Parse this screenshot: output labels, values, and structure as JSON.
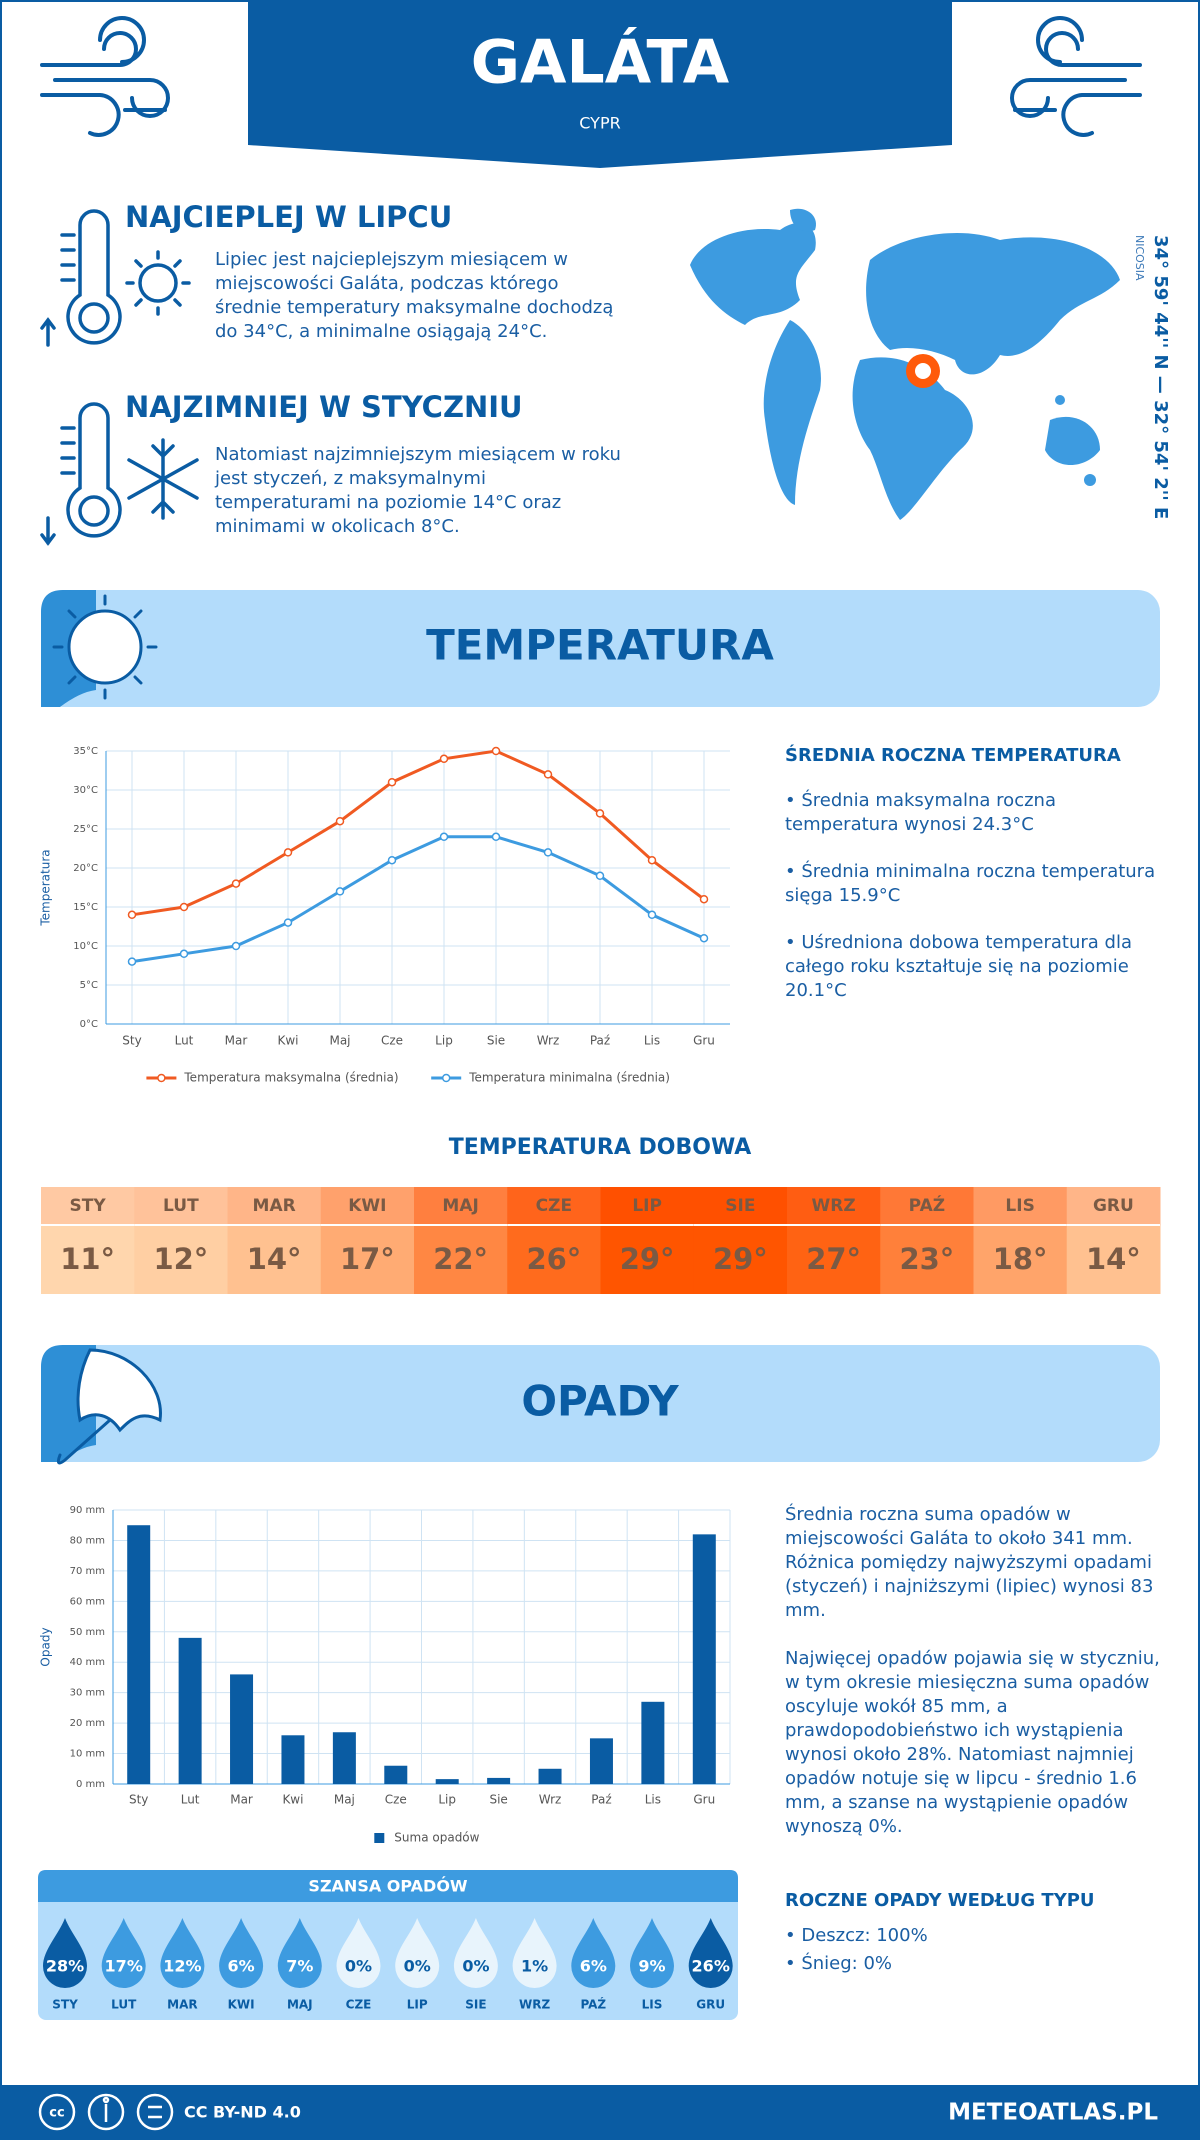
{
  "header": {
    "title": "GALÁTA",
    "subtitle": "CYPR"
  },
  "hottest": {
    "title": "NAJCIEPLEJ W LIPCU",
    "text": "Lipiec jest najcieplejszym miesiącem w miejscowości Galáta, podczas którego średnie temperatury maksymalne dochodzą do 34°C, a minimalne osiągają 24°C."
  },
  "coldest": {
    "title": "NAJZIMNIEJ W STYCZNIU",
    "text": "Natomiast najzimniejszym miesiącem w roku jest styczeń, z maksymalnymi temperaturami na poziomie 14°C oraz minimami w okolicach 8°C."
  },
  "location": {
    "coordinates": "34° 59' 44'' N — 32° 54' 2'' E",
    "capital": "NICOSIA"
  },
  "temperature_section": {
    "title": "TEMPERATURA",
    "summary_title": "ŚREDNIA ROCZNA TEMPERATURA",
    "bullets": [
      "• Średnia maksymalna roczna temperatura wynosi 24.3°C",
      "• Średnia minimalna roczna temperatura sięga 15.9°C",
      "• Uśredniona dobowa temperatura dla całego roku kształtuje się na poziomie 20.1°C"
    ]
  },
  "chart_data": [
    {
      "type": "line",
      "y_label": "Temperatura",
      "categories": [
        "Sty",
        "Lut",
        "Mar",
        "Kwi",
        "Maj",
        "Cze",
        "Lip",
        "Sie",
        "Wrz",
        "Paź",
        "Lis",
        "Gru"
      ],
      "series": [
        {
          "name": "Temperatura maksymalna (średnia)",
          "color": "#f05a22",
          "values": [
            14,
            15,
            18,
            22,
            26,
            31,
            34,
            35,
            32,
            27,
            21,
            16
          ]
        },
        {
          "name": "Temperatura minimalna (średnia)",
          "color": "#3d9be0",
          "values": [
            8,
            9,
            10,
            13,
            17,
            21,
            24,
            24,
            22,
            19,
            14,
            11
          ]
        }
      ],
      "ylim": [
        0,
        35
      ],
      "yticks": [
        {
          "value": 0,
          "label": "0°C"
        },
        {
          "value": 5,
          "label": "5°C"
        },
        {
          "value": 10,
          "label": "10°C"
        },
        {
          "value": 15,
          "label": "15°C"
        },
        {
          "value": 20,
          "label": "20°C"
        },
        {
          "value": 25,
          "label": "25°C"
        },
        {
          "value": 30,
          "label": "30°C"
        },
        {
          "value": 35,
          "label": "35°C"
        }
      ],
      "grid": true,
      "legend": "bottom"
    },
    {
      "type": "bar",
      "y_label": "Opady",
      "categories": [
        "Sty",
        "Lut",
        "Mar",
        "Kwi",
        "Maj",
        "Cze",
        "Lip",
        "Sie",
        "Wrz",
        "Paź",
        "Lis",
        "Gru"
      ],
      "series": [
        {
          "name": "Suma opadów",
          "color": "#0a5ca3",
          "values": [
            85,
            48,
            36,
            16,
            17,
            6,
            1.6,
            2,
            5,
            15,
            27,
            82
          ]
        }
      ],
      "ylim": [
        0,
        90
      ],
      "yticks": [
        {
          "value": 0,
          "label": "0 mm"
        },
        {
          "value": 10,
          "label": "10 mm"
        },
        {
          "value": 20,
          "label": "20 mm"
        },
        {
          "value": 30,
          "label": "30 mm"
        },
        {
          "value": 40,
          "label": "40 mm"
        },
        {
          "value": 50,
          "label": "50 mm"
        },
        {
          "value": 60,
          "label": "60 mm"
        },
        {
          "value": 70,
          "label": "70 mm"
        },
        {
          "value": 80,
          "label": "80 mm"
        },
        {
          "value": 90,
          "label": "90 mm"
        }
      ],
      "grid": true,
      "legend": "bottom"
    }
  ],
  "daily_temperature": {
    "title": "TEMPERATURA DOBOWA",
    "months": [
      "STY",
      "LUT",
      "MAR",
      "KWI",
      "MAJ",
      "CZE",
      "LIP",
      "SIE",
      "WRZ",
      "PAŹ",
      "LIS",
      "GRU"
    ],
    "values": [
      11,
      12,
      14,
      17,
      22,
      26,
      29,
      29,
      27,
      23,
      18,
      14
    ],
    "value_labels": [
      "11°",
      "12°",
      "14°",
      "17°",
      "22°",
      "26°",
      "29°",
      "29°",
      "27°",
      "23°",
      "18°",
      "14°"
    ]
  },
  "precipitation_section": {
    "title": "OPADY",
    "paragraphs": [
      "Średnia roczna suma opadów w miejscowości Galáta to około 341 mm. Różnica pomiędzy najwyższymi opadami (styczeń) i najniższymi (lipiec) wynosi 83 mm.",
      "Najwięcej opadów pojawia się w styczniu, w tym okresie miesięczna suma opadów oscyluje wokół 85 mm, a prawdopodobieństwo ich wystąpienia wynosi około 28%. Natomiast najmniej opadów notuje się w lipcu - średnio 1.6 mm, a szanse na wystąpienie opadów wynoszą 0%."
    ],
    "types_title": "ROCZNE OPADY WEDŁUG TYPU",
    "types": [
      "• Deszcz: 100%",
      "• Śnieg: 0%"
    ]
  },
  "precipitation_chance": {
    "title": "SZANSA OPADÓW",
    "months": [
      "STY",
      "LUT",
      "MAR",
      "KWI",
      "MAJ",
      "CZE",
      "LIP",
      "SIE",
      "WRZ",
      "PAŹ",
      "LIS",
      "GRU"
    ],
    "values": [
      28,
      17,
      12,
      6,
      7,
      0,
      0,
      0,
      1,
      6,
      9,
      26
    ],
    "value_labels": [
      "28%",
      "17%",
      "12%",
      "6%",
      "7%",
      "0%",
      "0%",
      "0%",
      "1%",
      "6%",
      "9%",
      "26%"
    ]
  },
  "footer": {
    "license": "CC BY-ND 4.0",
    "site": "METEOATLAS.PL"
  }
}
